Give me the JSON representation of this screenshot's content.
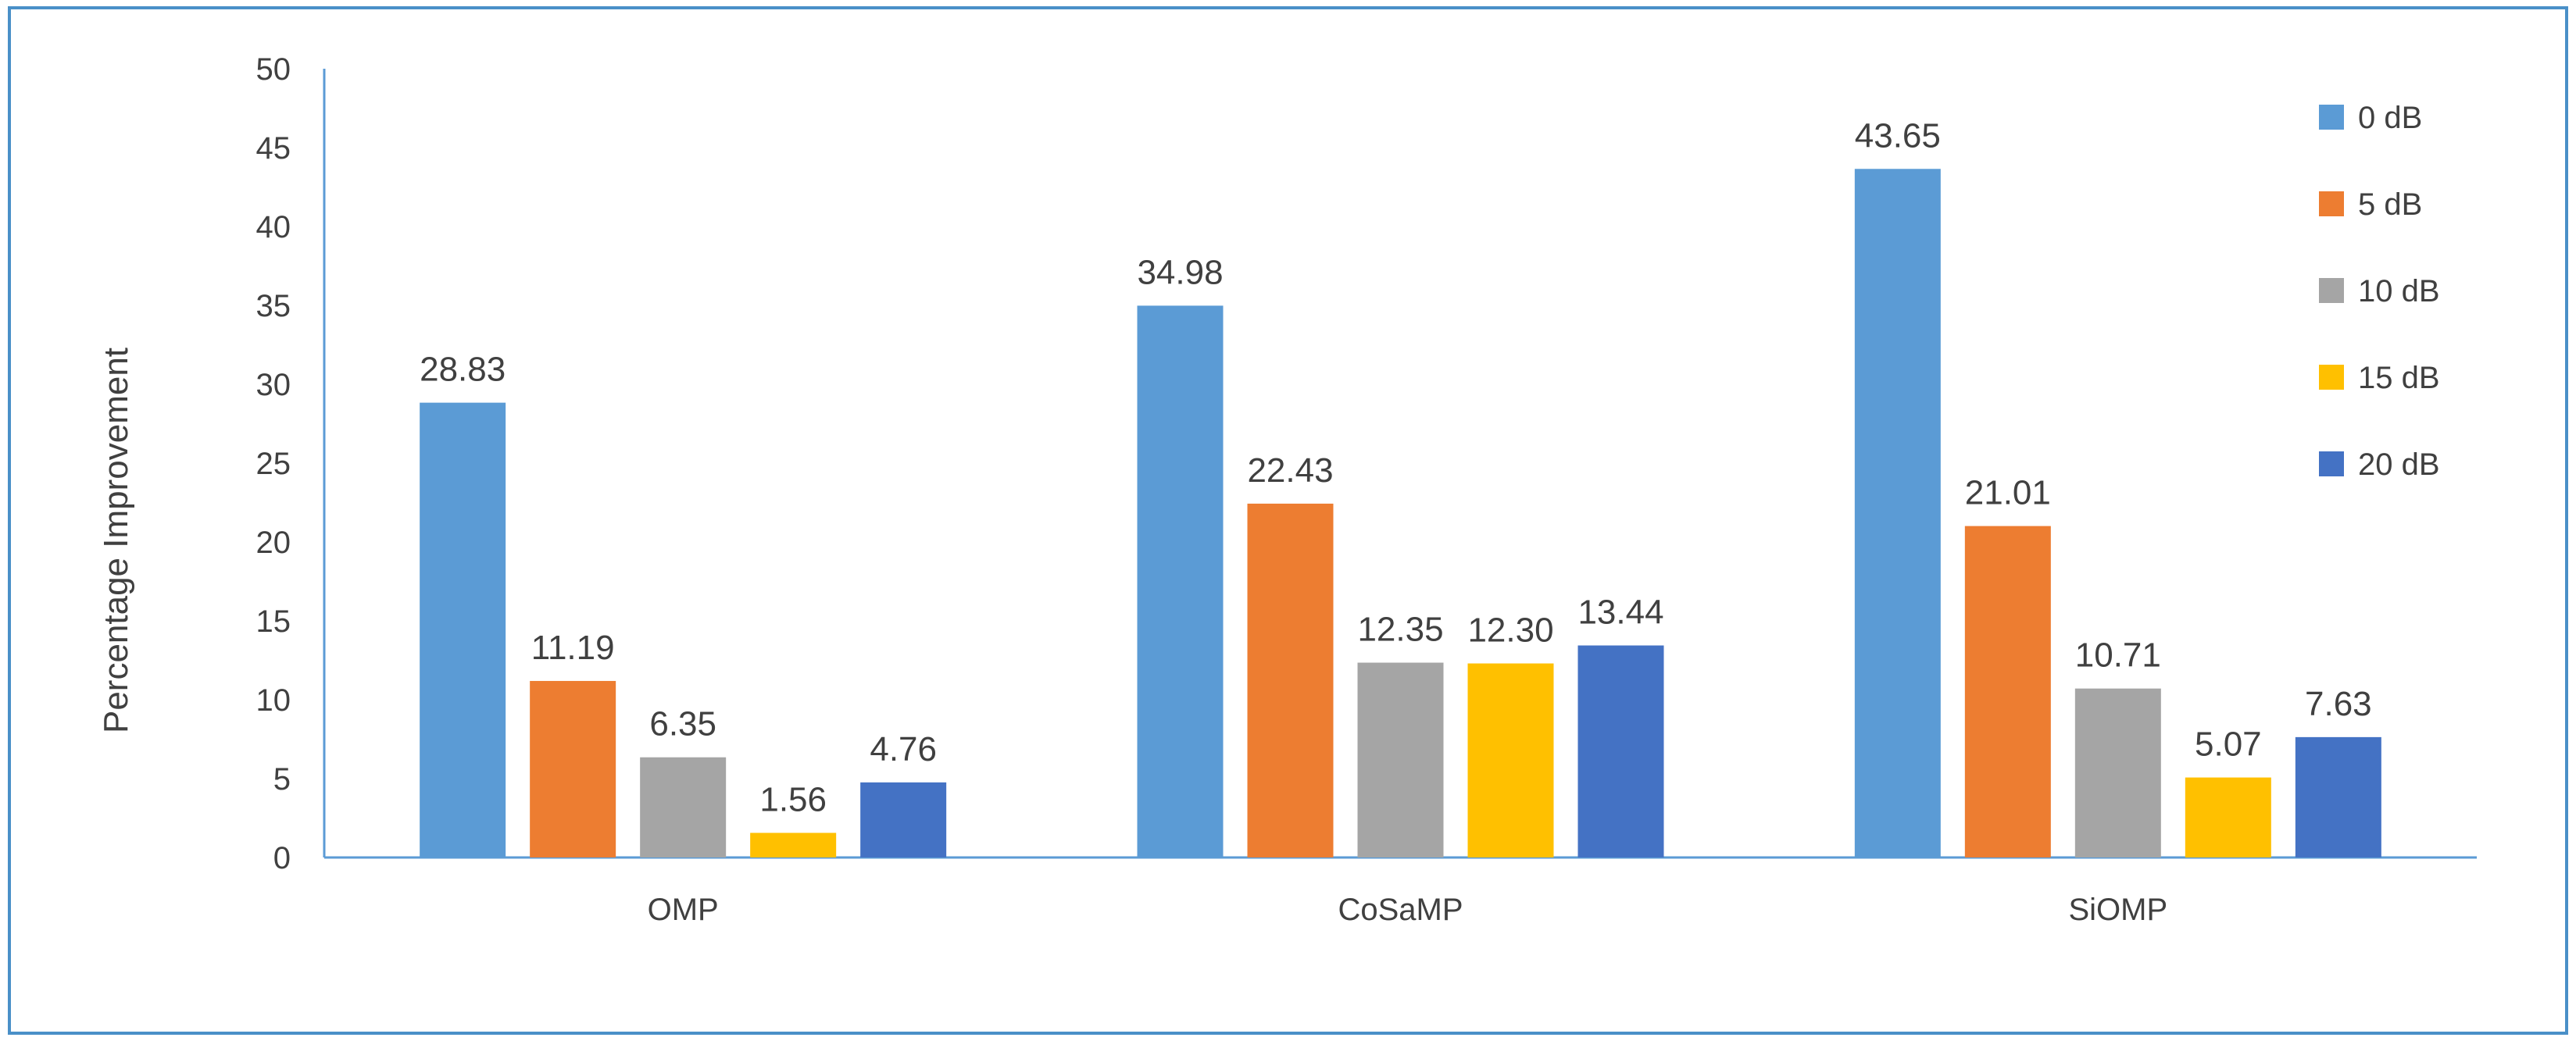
{
  "chart_data": {
    "type": "bar",
    "title": "",
    "xlabel": "",
    "ylabel": "Percentage Improvement",
    "ylim": [
      0,
      50
    ],
    "ytick_step": 5,
    "grid": false,
    "legend_position": "right",
    "data_labels": true,
    "categories": [
      "OMP",
      "CoSaMP",
      "SiOMP"
    ],
    "series": [
      {
        "name": "0 dB",
        "color": "#5b9bd5",
        "values": [
          28.83,
          34.98,
          43.65
        ],
        "labels": [
          "28.83",
          "34.98",
          "43.65"
        ]
      },
      {
        "name": "5 dB",
        "color": "#ed7d31",
        "values": [
          11.19,
          22.43,
          21.01
        ],
        "labels": [
          "11.19",
          "22.43",
          "21.01"
        ]
      },
      {
        "name": "10 dB",
        "color": "#a5a5a5",
        "values": [
          6.35,
          12.35,
          10.71
        ],
        "labels": [
          "6.35",
          "12.35",
          "10.71"
        ]
      },
      {
        "name": "15 dB",
        "color": "#ffc000",
        "values": [
          1.56,
          12.3,
          5.07
        ],
        "labels": [
          "1.56",
          "12.30",
          "5.07"
        ]
      },
      {
        "name": "20 dB",
        "color": "#4472c4",
        "values": [
          4.76,
          13.44,
          7.63
        ],
        "labels": [
          "4.76",
          "13.44",
          "7.63"
        ]
      }
    ]
  }
}
